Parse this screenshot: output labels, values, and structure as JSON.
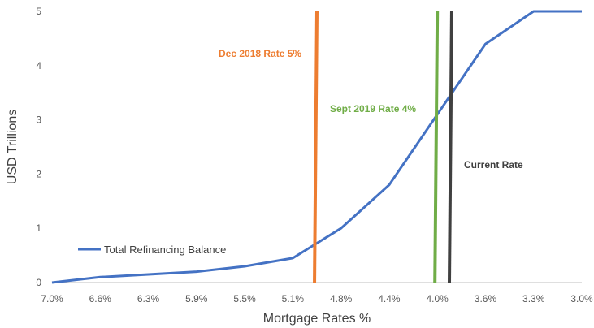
{
  "chart_data": {
    "type": "line",
    "xlabel": "Mortgage Rates %",
    "ylabel": "USD Trillions",
    "x": [
      "7.0%",
      "6.6%",
      "6.3%",
      "5.9%",
      "5.5%",
      "5.1%",
      "4.8%",
      "4.4%",
      "4.0%",
      "3.6%",
      "3.3%",
      "3.0%"
    ],
    "ylim": [
      0,
      5
    ],
    "yticks": [
      "0",
      "1",
      "2",
      "3",
      "4",
      "5"
    ],
    "grid": false,
    "legend_position": "bottom-left",
    "series": [
      {
        "name": "Total Refinancing Balance",
        "color": "#4472C4",
        "values": [
          0,
          0.1,
          0.15,
          0.2,
          0.3,
          0.45,
          1.0,
          1.8,
          3.1,
          4.4,
          5.0,
          5.0
        ]
      }
    ],
    "reference_lines": [
      {
        "label": "Dec 2018 Rate 5%",
        "color": "#ED7D31",
        "x_top": 5.5,
        "x_bottom": 5.45
      },
      {
        "label": "Sept 2019 Rate 4%",
        "color": "#70AD47",
        "x_top": 8.0,
        "x_bottom": 7.95
      },
      {
        "label": "Current Rate",
        "color": "#404040",
        "x_top": 8.3,
        "x_bottom": 8.25
      }
    ]
  }
}
